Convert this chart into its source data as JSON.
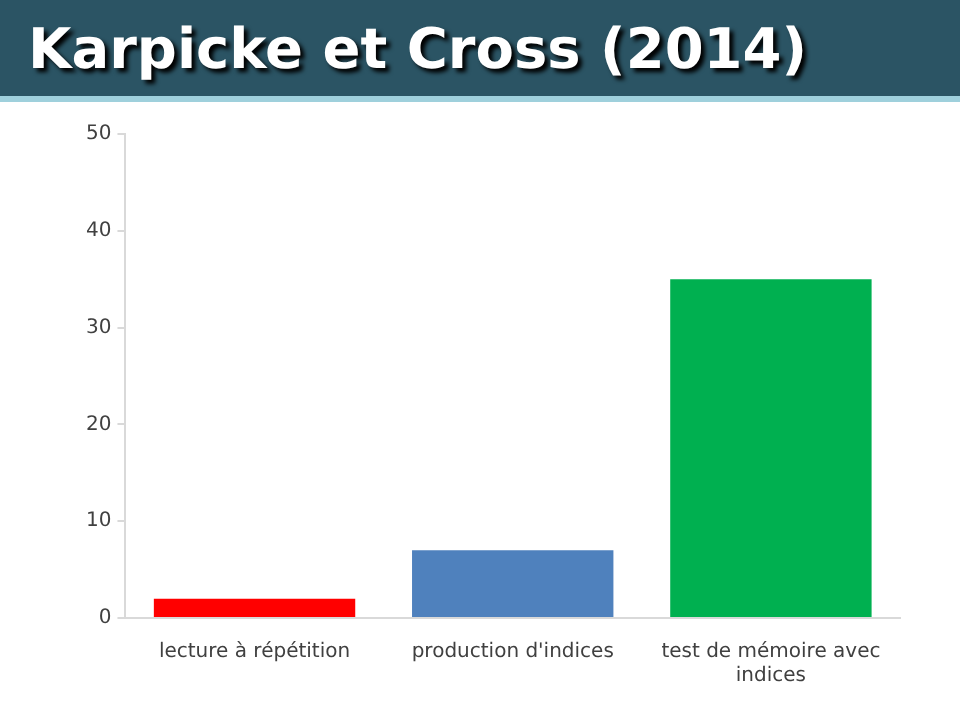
{
  "chart_data": {
    "type": "bar",
    "title": "Karpicke et Cross (2014)",
    "categories": [
      "lecture à répétition",
      "production d'indices",
      "test de mémoire avec indices"
    ],
    "values": [
      2,
      7,
      35
    ],
    "colors": [
      "#ff0000",
      "#4f81bd",
      "#00b050"
    ],
    "ylim": [
      0,
      50
    ],
    "yticks": [
      0,
      10,
      20,
      30,
      40,
      50
    ],
    "grid": false,
    "legend": false
  }
}
